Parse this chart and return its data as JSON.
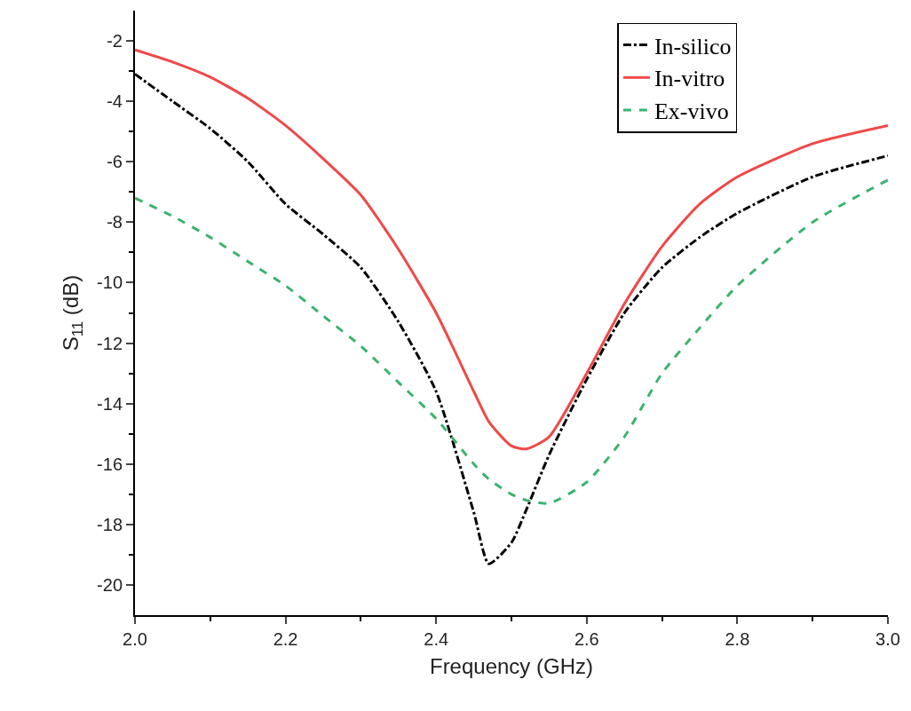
{
  "chart_data": {
    "type": "line",
    "xlabel": "Frequency (GHz)",
    "ylabel": "S$_{11}$ (dB)",
    "xlim": [
      2.0,
      3.0
    ],
    "xticks": [
      {
        "value": 2.0,
        "label": "2.0"
      },
      {
        "value": 2.2,
        "label": "2.2"
      },
      {
        "value": 2.4,
        "label": "2.4"
      },
      {
        "value": 2.6,
        "label": "2.6"
      },
      {
        "value": 2.8,
        "label": "2.8"
      },
      {
        "value": 3.0,
        "label": "3.0"
      }
    ],
    "ylim": [
      -21,
      -1
    ],
    "yticks": [
      -2,
      -4,
      -6,
      -8,
      -10,
      -12,
      -14,
      -16,
      -18,
      -20
    ],
    "grid": false,
    "legend": "top right",
    "marker": "none",
    "x": [
      2.0,
      2.05,
      2.1,
      2.15,
      2.2,
      2.25,
      2.3,
      2.35,
      2.4,
      2.45,
      2.47,
      2.5,
      2.52,
      2.55,
      2.6,
      2.65,
      2.7,
      2.75,
      2.8,
      2.9,
      3.0
    ],
    "series": [
      {
        "name": "In-silico",
        "color": "#000000",
        "line_style": "dashdot",
        "values": [
          -3.1,
          -4.0,
          -4.9,
          -6.0,
          -7.4,
          -8.4,
          -9.5,
          -11.3,
          -13.6,
          -17.6,
          -19.3,
          -18.6,
          -17.5,
          -15.7,
          -13.2,
          -11.0,
          -9.5,
          -8.5,
          -7.7,
          -6.5,
          -5.8
        ]
      },
      {
        "name": "In-vitro",
        "color": "#f04848",
        "line_style": "solid",
        "values": [
          -2.3,
          -2.7,
          -3.2,
          -3.9,
          -4.8,
          -5.9,
          -7.1,
          -8.9,
          -11.0,
          -13.6,
          -14.6,
          -15.4,
          -15.5,
          -15.1,
          -13.0,
          -10.7,
          -8.8,
          -7.4,
          -6.5,
          -5.4,
          -4.8
        ]
      },
      {
        "name": "Ex-vivo",
        "color": "#3cb371",
        "line_style": "dashed",
        "values": [
          -7.2,
          -7.8,
          -8.5,
          -9.3,
          -10.1,
          -11.1,
          -12.1,
          -13.3,
          -14.5,
          -16.0,
          -16.5,
          -17.0,
          -17.2,
          -17.3,
          -16.6,
          -15.1,
          -13.0,
          -11.5,
          -10.1,
          -8.0,
          -6.6
        ]
      }
    ]
  }
}
